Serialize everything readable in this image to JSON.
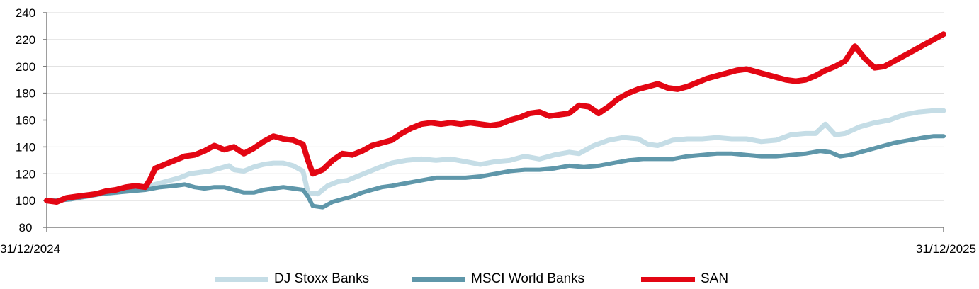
{
  "chart_data": {
    "type": "line",
    "title": "",
    "xlabel": "",
    "ylabel": "",
    "ylim": [
      80,
      240
    ],
    "yticks": [
      "80",
      "100",
      "120",
      "140",
      "160",
      "180",
      "200",
      "220",
      "240"
    ],
    "x_start_label": "31/12/2024",
    "x_end_label": "31/12/2025",
    "grid": "horizontal",
    "legend_position": "bottom",
    "series": [
      {
        "name": "DJ Stoxx Banks",
        "color": "#c5dde6",
        "points": [
          [
            0,
            100
          ],
          [
            2,
            100
          ],
          [
            5,
            102
          ],
          [
            8,
            103
          ],
          [
            11,
            105
          ],
          [
            14,
            106
          ],
          [
            17,
            108
          ],
          [
            20,
            110
          ],
          [
            22,
            112
          ],
          [
            25,
            115
          ],
          [
            27,
            117
          ],
          [
            29,
            120
          ],
          [
            31,
            121
          ],
          [
            33,
            122
          ],
          [
            35,
            124
          ],
          [
            37,
            126
          ],
          [
            38,
            123
          ],
          [
            40,
            122
          ],
          [
            42,
            125
          ],
          [
            44,
            127
          ],
          [
            46,
            128
          ],
          [
            48,
            128
          ],
          [
            50,
            126
          ],
          [
            52,
            122
          ],
          [
            53,
            106
          ],
          [
            55,
            105
          ],
          [
            57,
            111
          ],
          [
            59,
            114
          ],
          [
            61,
            115
          ],
          [
            63,
            118
          ],
          [
            65,
            121
          ],
          [
            67,
            124
          ],
          [
            70,
            128
          ],
          [
            73,
            130
          ],
          [
            76,
            131
          ],
          [
            79,
            130
          ],
          [
            82,
            131
          ],
          [
            85,
            129
          ],
          [
            88,
            127
          ],
          [
            91,
            129
          ],
          [
            94,
            130
          ],
          [
            97,
            133
          ],
          [
            100,
            131
          ],
          [
            103,
            134
          ],
          [
            106,
            136
          ],
          [
            108,
            135
          ],
          [
            111,
            141
          ],
          [
            114,
            145
          ],
          [
            117,
            147
          ],
          [
            120,
            146
          ],
          [
            122,
            142
          ],
          [
            124,
            141
          ],
          [
            127,
            145
          ],
          [
            130,
            146
          ],
          [
            133,
            146
          ],
          [
            136,
            147
          ],
          [
            139,
            146
          ],
          [
            142,
            146
          ],
          [
            145,
            144
          ],
          [
            148,
            145
          ],
          [
            151,
            149
          ],
          [
            154,
            150
          ],
          [
            156,
            150
          ],
          [
            158,
            157
          ],
          [
            160,
            149
          ],
          [
            162,
            150
          ],
          [
            165,
            155
          ],
          [
            168,
            158
          ],
          [
            171,
            160
          ],
          [
            174,
            164
          ],
          [
            177,
            166
          ],
          [
            180,
            167
          ],
          [
            182,
            167
          ]
        ]
      },
      {
        "name": "MSCI World Banks",
        "color": "#5f97aa",
        "points": [
          [
            0,
            100
          ],
          [
            2,
            100
          ],
          [
            5,
            101
          ],
          [
            8,
            103
          ],
          [
            11,
            105
          ],
          [
            14,
            106
          ],
          [
            17,
            107
          ],
          [
            20,
            108
          ],
          [
            23,
            110
          ],
          [
            26,
            111
          ],
          [
            28,
            112
          ],
          [
            30,
            110
          ],
          [
            32,
            109
          ],
          [
            34,
            110
          ],
          [
            36,
            110
          ],
          [
            38,
            108
          ],
          [
            40,
            106
          ],
          [
            42,
            106
          ],
          [
            44,
            108
          ],
          [
            46,
            109
          ],
          [
            48,
            110
          ],
          [
            50,
            109
          ],
          [
            52,
            108
          ],
          [
            53,
            103
          ],
          [
            54,
            96
          ],
          [
            56,
            95
          ],
          [
            58,
            99
          ],
          [
            60,
            101
          ],
          [
            62,
            103
          ],
          [
            64,
            106
          ],
          [
            66,
            108
          ],
          [
            68,
            110
          ],
          [
            70,
            111
          ],
          [
            73,
            113
          ],
          [
            76,
            115
          ],
          [
            79,
            117
          ],
          [
            82,
            117
          ],
          [
            85,
            117
          ],
          [
            88,
            118
          ],
          [
            91,
            120
          ],
          [
            94,
            122
          ],
          [
            97,
            123
          ],
          [
            100,
            123
          ],
          [
            103,
            124
          ],
          [
            106,
            126
          ],
          [
            109,
            125
          ],
          [
            112,
            126
          ],
          [
            115,
            128
          ],
          [
            118,
            130
          ],
          [
            121,
            131
          ],
          [
            124,
            131
          ],
          [
            127,
            131
          ],
          [
            130,
            133
          ],
          [
            133,
            134
          ],
          [
            136,
            135
          ],
          [
            139,
            135
          ],
          [
            142,
            134
          ],
          [
            145,
            133
          ],
          [
            148,
            133
          ],
          [
            151,
            134
          ],
          [
            154,
            135
          ],
          [
            157,
            137
          ],
          [
            159,
            136
          ],
          [
            161,
            133
          ],
          [
            163,
            134
          ],
          [
            166,
            137
          ],
          [
            169,
            140
          ],
          [
            172,
            143
          ],
          [
            175,
            145
          ],
          [
            178,
            147
          ],
          [
            180,
            148
          ],
          [
            182,
            148
          ]
        ]
      },
      {
        "name": "SAN",
        "color": "#e30613",
        "points": [
          [
            0,
            100
          ],
          [
            2,
            99
          ],
          [
            4,
            102
          ],
          [
            6,
            103
          ],
          [
            8,
            104
          ],
          [
            10,
            105
          ],
          [
            12,
            107
          ],
          [
            14,
            108
          ],
          [
            16,
            110
          ],
          [
            18,
            111
          ],
          [
            20,
            110
          ],
          [
            21,
            116
          ],
          [
            22,
            124
          ],
          [
            24,
            127
          ],
          [
            26,
            130
          ],
          [
            28,
            133
          ],
          [
            30,
            134
          ],
          [
            32,
            137
          ],
          [
            34,
            141
          ],
          [
            36,
            138
          ],
          [
            38,
            140
          ],
          [
            40,
            135
          ],
          [
            42,
            139
          ],
          [
            44,
            144
          ],
          [
            46,
            148
          ],
          [
            48,
            146
          ],
          [
            50,
            145
          ],
          [
            52,
            142
          ],
          [
            53,
            130
          ],
          [
            54,
            120
          ],
          [
            56,
            123
          ],
          [
            58,
            130
          ],
          [
            60,
            135
          ],
          [
            62,
            134
          ],
          [
            64,
            137
          ],
          [
            66,
            141
          ],
          [
            68,
            143
          ],
          [
            70,
            145
          ],
          [
            72,
            150
          ],
          [
            74,
            154
          ],
          [
            76,
            157
          ],
          [
            78,
            158
          ],
          [
            80,
            157
          ],
          [
            82,
            158
          ],
          [
            84,
            157
          ],
          [
            86,
            158
          ],
          [
            88,
            157
          ],
          [
            90,
            156
          ],
          [
            92,
            157
          ],
          [
            94,
            160
          ],
          [
            96,
            162
          ],
          [
            98,
            165
          ],
          [
            100,
            166
          ],
          [
            102,
            163
          ],
          [
            104,
            164
          ],
          [
            106,
            165
          ],
          [
            108,
            171
          ],
          [
            110,
            170
          ],
          [
            112,
            165
          ],
          [
            114,
            170
          ],
          [
            116,
            176
          ],
          [
            118,
            180
          ],
          [
            120,
            183
          ],
          [
            122,
            185
          ],
          [
            124,
            187
          ],
          [
            126,
            184
          ],
          [
            128,
            183
          ],
          [
            130,
            185
          ],
          [
            132,
            188
          ],
          [
            134,
            191
          ],
          [
            136,
            193
          ],
          [
            138,
            195
          ],
          [
            140,
            197
          ],
          [
            142,
            198
          ],
          [
            144,
            196
          ],
          [
            146,
            194
          ],
          [
            148,
            192
          ],
          [
            150,
            190
          ],
          [
            152,
            189
          ],
          [
            154,
            190
          ],
          [
            156,
            193
          ],
          [
            158,
            197
          ],
          [
            160,
            200
          ],
          [
            162,
            204
          ],
          [
            164,
            215
          ],
          [
            166,
            206
          ],
          [
            168,
            199
          ],
          [
            170,
            200
          ],
          [
            172,
            204
          ],
          [
            174,
            208
          ],
          [
            176,
            212
          ],
          [
            178,
            216
          ],
          [
            180,
            220
          ],
          [
            182,
            224
          ]
        ]
      }
    ]
  }
}
